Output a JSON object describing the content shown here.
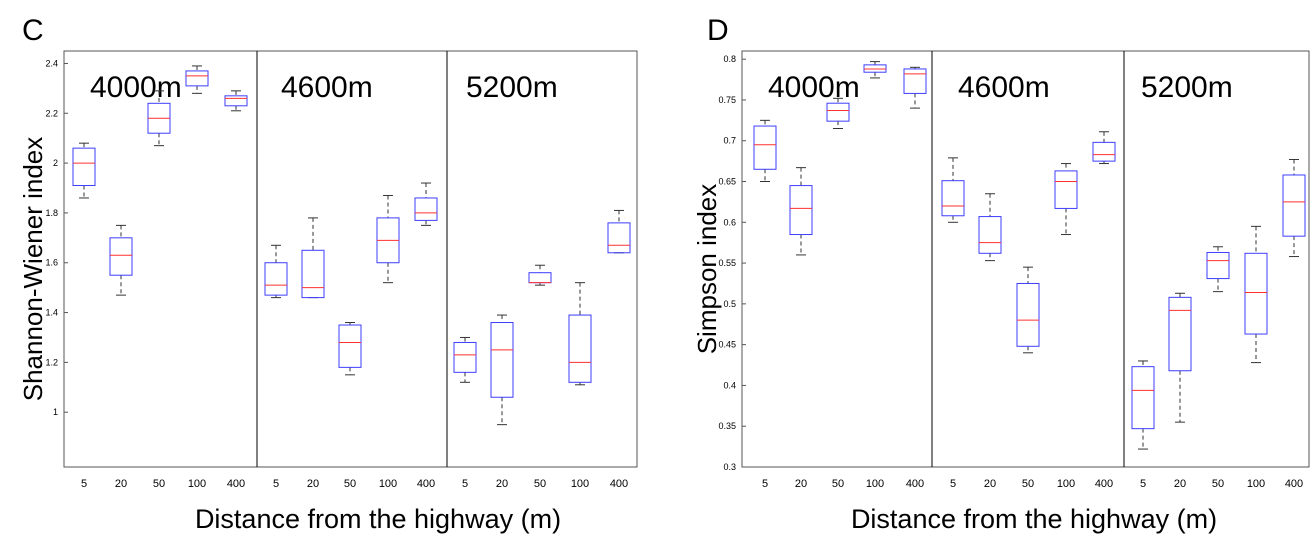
{
  "chart_data": [
    {
      "panel": "C",
      "type": "boxplot",
      "xlabel": "Distance from the highway (m)",
      "ylabel": "Shannon-Wiener index",
      "ylim": [
        0.78,
        2.45
      ],
      "yticks": [
        1,
        1.2,
        1.4,
        1.6,
        1.8,
        2,
        2.2,
        2.4
      ],
      "groups": [
        "4000m",
        "4600m",
        "5200m"
      ],
      "categories": [
        "5",
        "20",
        "50",
        "100",
        "400"
      ],
      "boxes": [
        [
          {
            "min": 1.86,
            "q1": 1.91,
            "median": 2.0,
            "q3": 2.06,
            "max": 2.08
          },
          {
            "min": 1.47,
            "q1": 1.55,
            "median": 1.63,
            "q3": 1.7,
            "max": 1.75
          },
          {
            "min": 2.07,
            "q1": 2.12,
            "median": 2.18,
            "q3": 2.24,
            "max": 2.29
          },
          {
            "min": 2.28,
            "q1": 2.31,
            "median": 2.35,
            "q3": 2.37,
            "max": 2.39
          },
          {
            "min": 2.21,
            "q1": 2.23,
            "median": 2.26,
            "q3": 2.27,
            "max": 2.29
          }
        ],
        [
          {
            "min": 1.46,
            "q1": 1.47,
            "median": 1.51,
            "q3": 1.6,
            "max": 1.67
          },
          {
            "min": 1.46,
            "q1": 1.46,
            "median": 1.5,
            "q3": 1.65,
            "max": 1.78
          },
          {
            "min": 1.15,
            "q1": 1.18,
            "median": 1.28,
            "q3": 1.35,
            "max": 1.36
          },
          {
            "min": 1.52,
            "q1": 1.6,
            "median": 1.69,
            "q3": 1.78,
            "max": 1.87
          },
          {
            "min": 1.75,
            "q1": 1.77,
            "median": 1.8,
            "q3": 1.86,
            "max": 1.92
          }
        ],
        [
          {
            "min": 1.12,
            "q1": 1.16,
            "median": 1.23,
            "q3": 1.28,
            "max": 1.3
          },
          {
            "min": 0.95,
            "q1": 1.06,
            "median": 1.25,
            "q3": 1.36,
            "max": 1.39
          },
          {
            "min": 1.51,
            "q1": 1.52,
            "median": 1.52,
            "q3": 1.56,
            "max": 1.59
          },
          {
            "min": 1.11,
            "q1": 1.12,
            "median": 1.2,
            "q3": 1.39,
            "max": 1.52
          },
          {
            "min": 1.64,
            "q1": 1.64,
            "median": 1.67,
            "q3": 1.76,
            "max": 1.81
          }
        ]
      ]
    },
    {
      "panel": "D",
      "type": "boxplot",
      "xlabel": "Distance from the highway (m)",
      "ylabel": "Simpson index",
      "ylim": [
        0.3,
        0.81
      ],
      "yticks": [
        0.3,
        0.35,
        0.4,
        0.45,
        0.5,
        0.55,
        0.6,
        0.65,
        0.7,
        0.75,
        0.8
      ],
      "groups": [
        "4000m",
        "4600m",
        "5200m"
      ],
      "categories": [
        "5",
        "20",
        "50",
        "100",
        "400"
      ],
      "boxes": [
        [
          {
            "min": 0.65,
            "q1": 0.665,
            "median": 0.695,
            "q3": 0.718,
            "max": 0.725
          },
          {
            "min": 0.56,
            "q1": 0.585,
            "median": 0.617,
            "q3": 0.645,
            "max": 0.667
          },
          {
            "min": 0.715,
            "q1": 0.724,
            "median": 0.737,
            "q3": 0.746,
            "max": 0.752
          },
          {
            "min": 0.777,
            "q1": 0.784,
            "median": 0.788,
            "q3": 0.793,
            "max": 0.797
          },
          {
            "min": 0.74,
            "q1": 0.758,
            "median": 0.782,
            "q3": 0.788,
            "max": 0.79
          }
        ],
        [
          {
            "min": 0.6,
            "q1": 0.608,
            "median": 0.62,
            "q3": 0.651,
            "max": 0.679
          },
          {
            "min": 0.553,
            "q1": 0.562,
            "median": 0.575,
            "q3": 0.607,
            "max": 0.635
          },
          {
            "min": 0.44,
            "q1": 0.448,
            "median": 0.48,
            "q3": 0.525,
            "max": 0.545
          },
          {
            "min": 0.585,
            "q1": 0.617,
            "median": 0.65,
            "q3": 0.663,
            "max": 0.672
          },
          {
            "min": 0.672,
            "q1": 0.675,
            "median": 0.683,
            "q3": 0.698,
            "max": 0.711
          }
        ],
        [
          {
            "min": 0.322,
            "q1": 0.347,
            "median": 0.394,
            "q3": 0.423,
            "max": 0.43
          },
          {
            "min": 0.355,
            "q1": 0.418,
            "median": 0.492,
            "q3": 0.508,
            "max": 0.513
          },
          {
            "min": 0.515,
            "q1": 0.531,
            "median": 0.553,
            "q3": 0.563,
            "max": 0.57
          },
          {
            "min": 0.428,
            "q1": 0.463,
            "median": 0.514,
            "q3": 0.562,
            "max": 0.595
          },
          {
            "min": 0.558,
            "q1": 0.583,
            "median": 0.625,
            "q3": 0.658,
            "max": 0.677
          }
        ]
      ]
    }
  ]
}
